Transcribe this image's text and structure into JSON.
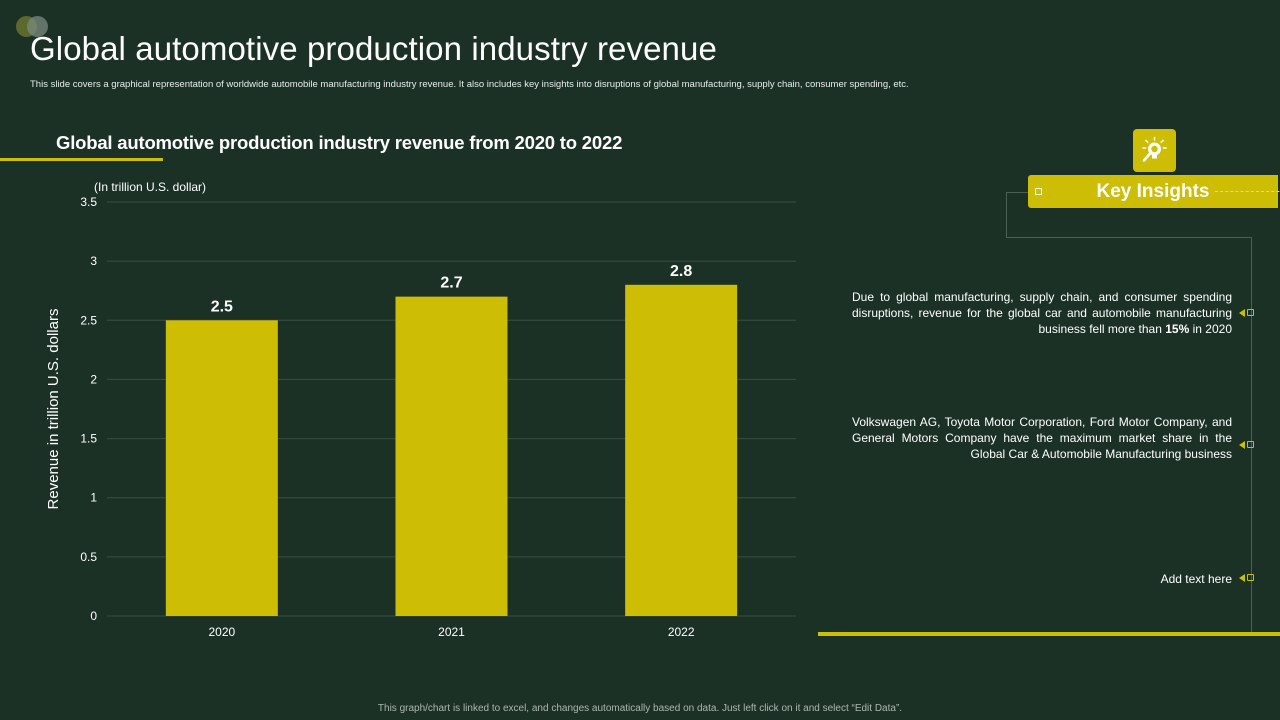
{
  "header": {
    "title": "Global automotive production industry revenue",
    "subtitle": "This slide covers a graphical representation of worldwide automobile manufacturing industry revenue. It also includes key insights into disruptions of global manufacturing, supply chain, consumer spending, etc."
  },
  "chart_data": {
    "type": "bar",
    "title": "Global automotive production industry revenue from 2020 to 2022",
    "unit_note": "(In trillion U.S. dollar)",
    "xlabel": "",
    "ylabel": "Revenue in trillion U.S. dollars",
    "categories": [
      "2020",
      "2021",
      "2022"
    ],
    "values": [
      2.5,
      2.7,
      2.8
    ],
    "data_labels": [
      "2.5",
      "2.7",
      "2.8"
    ],
    "ylim": [
      0,
      3.5
    ],
    "yticks": [
      0,
      0.5,
      1,
      1.5,
      2,
      2.5,
      3,
      3.5
    ],
    "ytick_labels": [
      "0",
      "0.5",
      "1",
      "1.5",
      "2",
      "2.5",
      "3",
      "3.5"
    ],
    "grid": true,
    "bar_color": "#cdbd04",
    "grid_color": "#3a4d40"
  },
  "insights": {
    "header_label": "Key Insights",
    "icon": "lightbulb-magnifier-icon",
    "items": [
      {
        "text_before": "Due to global manufacturing, supply chain, and consumer spending disruptions, revenue for the global car and automobile manufacturing business fell more than",
        "highlight": "15%",
        "text_after": "in 2020"
      },
      {
        "text": "Volkswagen AG, Toyota Motor Corporation, Ford Motor Company, and General Motors Company have the maximum market share in the Global Car & Automobile Manufacturing business"
      },
      {
        "text": "Add text here"
      }
    ]
  },
  "footer": {
    "note": "This graph/chart is linked to excel, and changes automatically based on data. Just left click on it and select “Edit Data”."
  },
  "colors": {
    "background": "#1c3126",
    "accent": "#cdbd04",
    "text": "#ffffff"
  }
}
